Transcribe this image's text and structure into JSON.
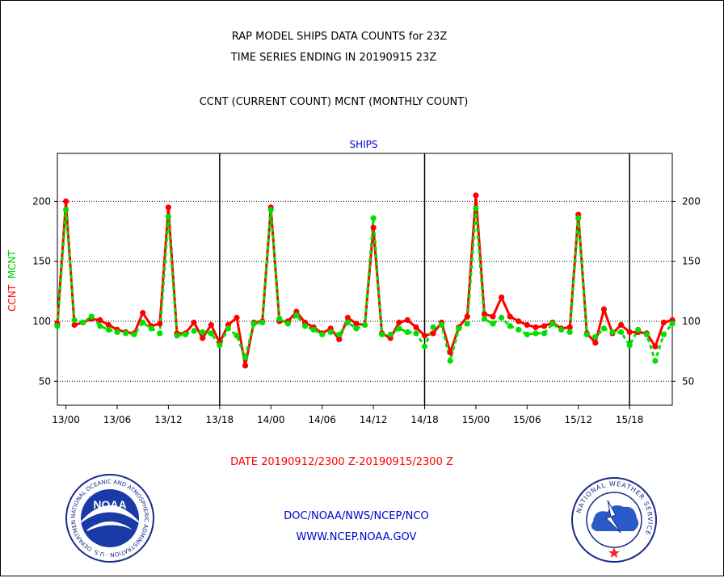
{
  "header": {
    "line1": "RAP MODEL SHIPS DATA COUNTS for 23Z",
    "line2": "TIME SERIES ENDING IN 20190915 23Z",
    "line3": "CCNT (CURRENT COUNT) MCNT (MONTHLY COUNT)"
  },
  "footer": {
    "date_range": "DATE 20190912/2300 Z-20190915/2300 Z",
    "org": "DOC/NOAA/NWS/NCEP/NCO",
    "url": "WWW.NCEP.NOAA.GOV"
  },
  "logos": {
    "noaa_text": "NOAA",
    "noaa_ring": "NATIONAL OCEANIC AND ATMOSPHERIC ADMINISTRATION · U.S. DEPARTMENT OF COMMERCE",
    "nws_ring": "NATIONAL WEATHER SERVICE"
  },
  "colors": {
    "ccnt": "#ff0000",
    "mcnt": "#00e000",
    "title_blue": "#0000cc",
    "date_red": "#ff0000"
  },
  "chart_data": {
    "type": "line",
    "title": "SHIPS",
    "ylabel_ccnt": "CCNT",
    "ylabel_mcnt": "MCNT",
    "ylim": [
      30,
      240
    ],
    "yticks": [
      50,
      100,
      150,
      200
    ],
    "x_tick_labels": [
      "13/00",
      "13/06",
      "13/12",
      "13/18",
      "14/00",
      "14/06",
      "14/12",
      "14/18",
      "15/00",
      "15/06",
      "15/12",
      "15/18"
    ],
    "x_tick_hours": [
      0,
      6,
      12,
      18,
      24,
      30,
      36,
      42,
      48,
      54,
      60,
      66
    ],
    "day_boundaries": [
      18,
      42,
      66
    ],
    "x_range_hours": [
      -1,
      71
    ],
    "grid": "dotted horizontal at y ticks",
    "series": [
      {
        "name": "CCNT",
        "hours": [
          -1,
          0,
          1,
          2,
          3,
          4,
          5,
          6,
          7,
          8,
          9,
          10,
          11,
          12,
          13,
          14,
          15,
          16,
          17,
          18,
          19,
          20,
          21,
          22,
          23,
          24,
          25,
          26,
          27,
          28,
          29,
          30,
          31,
          32,
          33,
          34,
          35,
          36,
          37,
          38,
          39,
          40,
          41,
          42,
          43,
          44,
          45,
          46,
          47,
          48,
          49,
          50,
          51,
          52,
          53,
          54,
          55,
          56,
          57,
          58,
          59,
          60,
          61,
          62,
          63,
          64,
          65,
          66,
          67,
          68,
          69,
          70,
          71
        ],
        "values": [
          98,
          200,
          97,
          99,
          102,
          101,
          97,
          93,
          91,
          90,
          107,
          96,
          98,
          195,
          90,
          90,
          99,
          86,
          97,
          82,
          97,
          103,
          63,
          99,
          100,
          195,
          100,
          100,
          108,
          99,
          95,
          90,
          94,
          85,
          103,
          98,
          97,
          178,
          90,
          86,
          99,
          101,
          95,
          88,
          90,
          99,
          74,
          95,
          104,
          205,
          106,
          104,
          120,
          104,
          100,
          97,
          95,
          96,
          99,
          94,
          95,
          189,
          90,
          82,
          110,
          90,
          97,
          91,
          91,
          90,
          79,
          99,
          101
        ]
      },
      {
        "name": "MCNT",
        "hours": [
          -1,
          0,
          1,
          2,
          3,
          4,
          5,
          6,
          7,
          8,
          9,
          10,
          11,
          12,
          13,
          14,
          15,
          16,
          17,
          18,
          19,
          20,
          21,
          22,
          23,
          24,
          25,
          26,
          27,
          28,
          29,
          30,
          31,
          32,
          33,
          34,
          35,
          36,
          37,
          38,
          39,
          40,
          41,
          42,
          43,
          44,
          45,
          46,
          47,
          48,
          49,
          50,
          51,
          52,
          53,
          54,
          55,
          56,
          57,
          58,
          59,
          60,
          61,
          62,
          63,
          64,
          65,
          66,
          67,
          68,
          69,
          70,
          71
        ],
        "values": [
          96,
          193,
          101,
          99,
          104,
          96,
          93,
          91,
          90,
          89,
          99,
          94,
          90,
          187,
          88,
          89,
          92,
          91,
          90,
          80,
          94,
          88,
          70,
          98,
          99,
          193,
          102,
          98,
          105,
          96,
          93,
          89,
          91,
          89,
          99,
          94,
          97,
          186,
          89,
          89,
          94,
          91,
          90,
          79,
          95,
          97,
          67,
          94,
          98,
          194,
          102,
          98,
          103,
          96,
          93,
          89,
          90,
          90,
          98,
          93,
          91,
          186,
          89,
          87,
          94,
          91,
          91,
          80,
          93,
          89,
          67,
          89,
          98
        ]
      }
    ]
  }
}
